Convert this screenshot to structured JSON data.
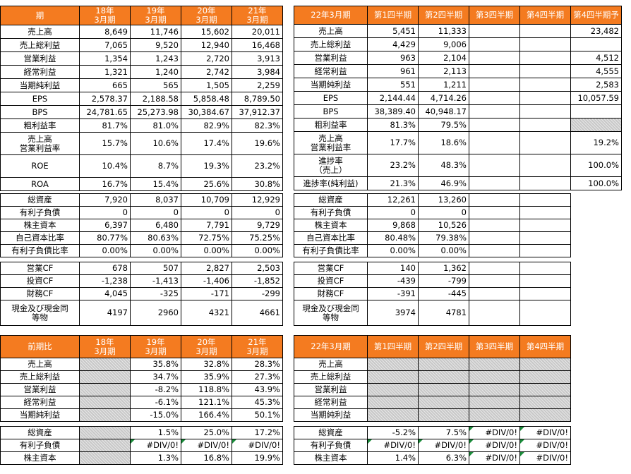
{
  "colors": {
    "header_bg": "#f47b20",
    "header_text": "#ffffff",
    "shaded": "#c8c8c8",
    "error_marker": "#1a8c3a"
  },
  "left_annual": {
    "header": [
      "期",
      "18年\n3月期",
      "19年\n3月期",
      "20年\n3月期",
      "21年\n3月期"
    ],
    "rows": [
      [
        "売上高",
        "8,649",
        "11,746",
        "15,602",
        "20,011"
      ],
      [
        "売上総利益",
        "7,065",
        "9,520",
        "12,940",
        "16,468"
      ],
      [
        "営業利益",
        "1,354",
        "1,243",
        "2,720",
        "3,913"
      ],
      [
        "経常利益",
        "1,321",
        "1,240",
        "2,742",
        "3,984"
      ],
      [
        "当期純利益",
        "665",
        "565",
        "1,505",
        "2,259"
      ],
      [
        "EPS",
        "2,578.37",
        "2,188.58",
        "5,858.48",
        "8,789.50"
      ],
      [
        "BPS",
        "24,781.65",
        "25,273.98",
        "30,384.67",
        "37,912.37"
      ],
      [
        "粗利益率",
        "81.7%",
        "81.0%",
        "82.9%",
        "82.3%"
      ],
      [
        "売上高\n営業利益率",
        "15.7%",
        "10.6%",
        "17.4%",
        "19.6%"
      ],
      [
        "ROE",
        "10.4%",
        "8.7%",
        "19.3%",
        "23.2%"
      ],
      [
        "ROA",
        "16.7%",
        "15.4%",
        "25.6%",
        "30.8%"
      ]
    ]
  },
  "right_quarterly": {
    "header": [
      "22年3月期",
      "第1四半期",
      "第2四半期",
      "第3四半期",
      "第4四半期",
      "第4四半期予"
    ],
    "rows": [
      [
        "売上高",
        "5,451",
        "11,333",
        "",
        "",
        "23,482"
      ],
      [
        "売上総利益",
        "4,429",
        "9,006",
        "",
        "",
        ""
      ],
      [
        "営業利益",
        "963",
        "2,104",
        "",
        "",
        "4,512"
      ],
      [
        "経常利益",
        "961",
        "2,113",
        "",
        "",
        "4,555"
      ],
      [
        "当期純利益",
        "551",
        "1,211",
        "",
        "",
        "2,583"
      ],
      [
        "EPS",
        "2,144.44",
        "4,714.26",
        "",
        "",
        "10,057.59"
      ],
      [
        "BPS",
        "38,389.40",
        "40,948.17",
        "",
        "",
        ""
      ],
      [
        "粗利益率",
        "81.3%",
        "79.5%",
        "",
        "",
        ""
      ],
      [
        "売上高\n営業利益率",
        "17.7%",
        "18.6%",
        "",
        "",
        "19.2%"
      ],
      [
        "進捗率\n（売上）",
        "23.2%",
        "48.3%",
        "",
        "",
        "100.0%"
      ],
      [
        "進捗率(純利益)",
        "21.3%",
        "46.9%",
        "",
        "",
        "100.0%"
      ]
    ]
  },
  "left_balance": {
    "rows": [
      [
        "総資産",
        "7,920",
        "8,037",
        "10,709",
        "12,929"
      ],
      [
        "有利子負債",
        "0",
        "0",
        "0",
        "0"
      ],
      [
        "株主資本",
        "6,397",
        "6,480",
        "7,791",
        "9,729"
      ],
      [
        "自己資本比率",
        "80.77%",
        "80.63%",
        "72.75%",
        "75.25%"
      ],
      [
        "有利子負債比率",
        "0.00%",
        "0.00%",
        "0.00%",
        "0.00%"
      ]
    ]
  },
  "right_balance": {
    "rows": [
      [
        "総資産",
        "12,261",
        "13,260",
        "",
        ""
      ],
      [
        "有利子負債",
        "0",
        "0",
        "",
        ""
      ],
      [
        "株主資本",
        "9,868",
        "10,526",
        "",
        ""
      ],
      [
        "自己資本比率",
        "80.48%",
        "79.38%",
        "",
        ""
      ],
      [
        "有利子負債比率",
        "0.00%",
        "0.00%",
        "",
        ""
      ]
    ]
  },
  "left_cf": {
    "rows": [
      [
        "営業CF",
        "678",
        "507",
        "2,827",
        "2,503"
      ],
      [
        "投資CF",
        "-1,238",
        "-1,413",
        "-1,406",
        "-1,852"
      ],
      [
        "財務CF",
        "4,045",
        "-325",
        "-171",
        "-299"
      ],
      [
        "現金及び現金同\n等物",
        "4197",
        "2960",
        "4321",
        "4661"
      ]
    ]
  },
  "right_cf": {
    "rows": [
      [
        "営業CF",
        "140",
        "1,362",
        "",
        ""
      ],
      [
        "投資CF",
        "-439",
        "-799",
        "",
        ""
      ],
      [
        "財務CF",
        "-391",
        "-445",
        "",
        ""
      ],
      [
        "現金及び現金同\n等物",
        "3974",
        "4781",
        "",
        ""
      ]
    ]
  },
  "left_yoy": {
    "header": [
      "前期比",
      "18年\n3月期",
      "19年\n3月期",
      "20年\n3月期",
      "21年\n3月期"
    ],
    "rows": [
      [
        "売上高",
        "",
        "35.8%",
        "32.8%",
        "28.3%"
      ],
      [
        "売上総利益",
        "",
        "34.7%",
        "35.9%",
        "27.3%"
      ],
      [
        "営業利益",
        "",
        "-8.2%",
        "118.8%",
        "43.9%"
      ],
      [
        "経常利益",
        "",
        "-6.1%",
        "121.1%",
        "45.3%"
      ],
      [
        "当期純利益",
        "",
        "-15.0%",
        "166.4%",
        "50.1%"
      ]
    ]
  },
  "right_yoy": {
    "header": [
      "22年3月期",
      "第1四半期",
      "第2四半期",
      "第3四半期",
      "第4四半期"
    ],
    "rows": [
      [
        "売上高",
        "",
        "",
        "",
        ""
      ],
      [
        "売上総利益",
        "",
        "",
        "",
        ""
      ],
      [
        "営業利益",
        "",
        "",
        "",
        ""
      ],
      [
        "経常利益",
        "",
        "",
        "",
        ""
      ],
      [
        "当期純利益",
        "",
        "",
        "",
        ""
      ]
    ]
  },
  "left_yoy_balance": {
    "rows": [
      [
        "総資産",
        "",
        "1.5%",
        "25.0%",
        "17.2%"
      ],
      [
        "有利子負債",
        "",
        "#DIV/0!",
        "#DIV/0!",
        "#DIV/0!"
      ],
      [
        "株主資本",
        "",
        "1.3%",
        "16.8%",
        "19.9%"
      ]
    ]
  },
  "right_yoy_balance": {
    "rows": [
      [
        "総資産",
        "-5.2%",
        "7.5%",
        "#DIV/0!",
        "#DIV/0!"
      ],
      [
        "有利子負債",
        "#DIV/0!",
        "#DIV/0!",
        "#DIV/0!",
        "#DIV/0!"
      ],
      [
        "株主資本",
        "1.4%",
        "6.3%",
        "#DIV/0!",
        "#DIV/0!"
      ]
    ]
  }
}
